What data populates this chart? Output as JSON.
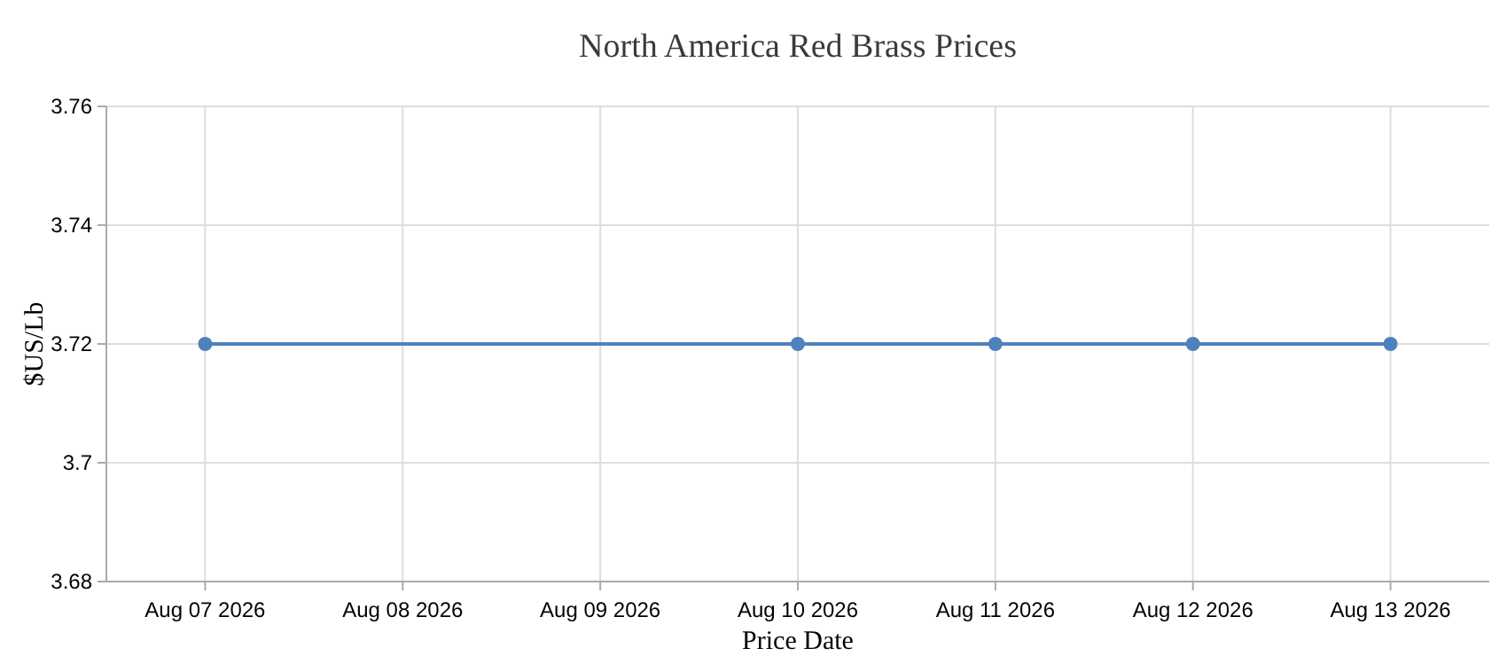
{
  "chart_data": {
    "type": "line",
    "title": "North America Red Brass Prices",
    "xlabel": "Price Date",
    "ylabel": "$US/Lb",
    "x": [
      "2026-08-07",
      "2026-08-10",
      "2026-08-11",
      "2026-08-12",
      "2026-08-13"
    ],
    "series": [
      {
        "color": "#4f81bc",
        "values": [
          3.72,
          3.72,
          3.72,
          3.72,
          3.72
        ]
      }
    ],
    "xlim": [
      "2026-08-06T12:00",
      "2026-08-13T12:00"
    ],
    "xticks": [
      {
        "value": "2026-08-07",
        "label": "Aug 07 2026"
      },
      {
        "value": "2026-08-08",
        "label": "Aug 08 2026"
      },
      {
        "value": "2026-08-09",
        "label": "Aug 09 2026"
      },
      {
        "value": "2026-08-10",
        "label": "Aug 10 2026"
      },
      {
        "value": "2026-08-11",
        "label": "Aug 11 2026"
      },
      {
        "value": "2026-08-12",
        "label": "Aug 12 2026"
      },
      {
        "value": "2026-08-13",
        "label": "Aug 13 2026"
      }
    ],
    "ylim": [
      3.68,
      3.76
    ],
    "yticks": [
      3.68,
      3.7,
      3.72,
      3.74,
      3.76
    ],
    "grid": true,
    "marker": "circle",
    "line_style": "solid"
  }
}
